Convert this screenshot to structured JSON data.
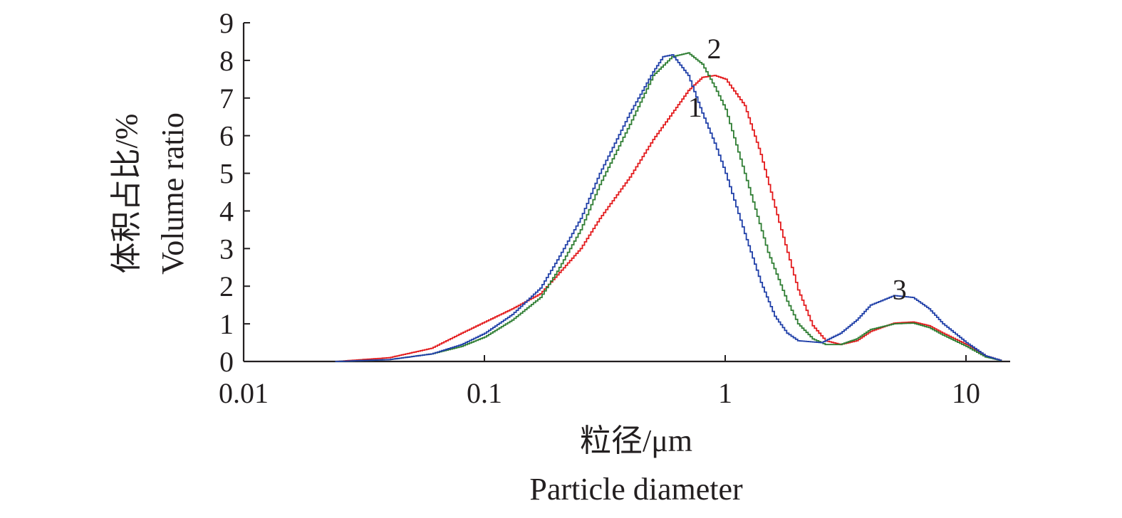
{
  "chart_data": {
    "type": "line",
    "xscale": "log",
    "xlim": [
      0.01,
      15
    ],
    "ylim": [
      0,
      9
    ],
    "x_ticks": [
      0.01,
      0.1,
      1,
      10
    ],
    "x_tick_labels": [
      "0.01",
      "0.1",
      "1",
      "10"
    ],
    "y_ticks": [
      0,
      1,
      2,
      3,
      4,
      5,
      6,
      7,
      8,
      9
    ],
    "y_tick_labels": [
      "0",
      "1",
      "2",
      "3",
      "4",
      "5",
      "6",
      "7",
      "8",
      "9"
    ],
    "xlabel_cn": "粒径/μm",
    "xlabel_en": "Particle diameter",
    "ylabel_cn": "体积占比/%",
    "ylabel_en": "Volume ratio",
    "grid": false,
    "series": [
      {
        "label": "1",
        "color": "#e31a1c",
        "points": [
          [
            0.024,
            0.0
          ],
          [
            0.04,
            0.1
          ],
          [
            0.06,
            0.35
          ],
          [
            0.08,
            0.75
          ],
          [
            0.1,
            1.05
          ],
          [
            0.13,
            1.4
          ],
          [
            0.17,
            1.8
          ],
          [
            0.2,
            2.3
          ],
          [
            0.25,
            3.0
          ],
          [
            0.3,
            3.8
          ],
          [
            0.4,
            4.9
          ],
          [
            0.5,
            5.9
          ],
          [
            0.6,
            6.6
          ],
          [
            0.7,
            7.2
          ],
          [
            0.8,
            7.55
          ],
          [
            0.9,
            7.6
          ],
          [
            1.0,
            7.5
          ],
          [
            1.2,
            6.8
          ],
          [
            1.4,
            5.5
          ],
          [
            1.7,
            3.5
          ],
          [
            2.0,
            1.9
          ],
          [
            2.3,
            0.95
          ],
          [
            2.6,
            0.55
          ],
          [
            3.0,
            0.45
          ],
          [
            3.5,
            0.55
          ],
          [
            4.0,
            0.8
          ],
          [
            5.0,
            1.02
          ],
          [
            6.0,
            1.05
          ],
          [
            7.0,
            0.95
          ],
          [
            8.0,
            0.75
          ],
          [
            10.0,
            0.45
          ],
          [
            12.0,
            0.15
          ],
          [
            14.0,
            0.02
          ]
        ],
        "label_anchor": [
          0.75,
          6.5
        ]
      },
      {
        "label": "2",
        "color": "#2e7d32",
        "points": [
          [
            0.024,
            0.0
          ],
          [
            0.04,
            0.05
          ],
          [
            0.06,
            0.2
          ],
          [
            0.08,
            0.4
          ],
          [
            0.1,
            0.65
          ],
          [
            0.13,
            1.1
          ],
          [
            0.17,
            1.7
          ],
          [
            0.2,
            2.4
          ],
          [
            0.25,
            3.5
          ],
          [
            0.3,
            4.7
          ],
          [
            0.4,
            6.3
          ],
          [
            0.5,
            7.6
          ],
          [
            0.6,
            8.1
          ],
          [
            0.7,
            8.2
          ],
          [
            0.8,
            7.9
          ],
          [
            0.9,
            7.3
          ],
          [
            1.0,
            6.7
          ],
          [
            1.2,
            5.0
          ],
          [
            1.5,
            2.9
          ],
          [
            1.8,
            1.6
          ],
          [
            2.0,
            1.0
          ],
          [
            2.3,
            0.6
          ],
          [
            2.6,
            0.45
          ],
          [
            3.0,
            0.45
          ],
          [
            3.5,
            0.6
          ],
          [
            4.0,
            0.85
          ],
          [
            5.0,
            1.0
          ],
          [
            6.0,
            1.02
          ],
          [
            7.0,
            0.9
          ],
          [
            8.0,
            0.7
          ],
          [
            10.0,
            0.4
          ],
          [
            12.0,
            0.12
          ],
          [
            14.0,
            0.02
          ]
        ],
        "label_anchor": [
          0.9,
          8.05
        ]
      },
      {
        "label": "3",
        "color": "#1f3fa8",
        "points": [
          [
            0.024,
            0.0
          ],
          [
            0.04,
            0.05
          ],
          [
            0.06,
            0.2
          ],
          [
            0.08,
            0.45
          ],
          [
            0.1,
            0.75
          ],
          [
            0.13,
            1.25
          ],
          [
            0.17,
            1.95
          ],
          [
            0.2,
            2.7
          ],
          [
            0.25,
            3.8
          ],
          [
            0.3,
            5.0
          ],
          [
            0.4,
            6.6
          ],
          [
            0.5,
            7.7
          ],
          [
            0.55,
            8.1
          ],
          [
            0.6,
            8.15
          ],
          [
            0.7,
            7.6
          ],
          [
            0.8,
            6.6
          ],
          [
            0.9,
            5.8
          ],
          [
            1.0,
            5.0
          ],
          [
            1.2,
            3.4
          ],
          [
            1.4,
            2.1
          ],
          [
            1.6,
            1.2
          ],
          [
            1.8,
            0.75
          ],
          [
            2.0,
            0.55
          ],
          [
            2.5,
            0.5
          ],
          [
            3.0,
            0.75
          ],
          [
            3.5,
            1.1
          ],
          [
            4.0,
            1.5
          ],
          [
            5.0,
            1.75
          ],
          [
            6.0,
            1.7
          ],
          [
            7.0,
            1.4
          ],
          [
            8.0,
            1.0
          ],
          [
            10.0,
            0.5
          ],
          [
            12.0,
            0.15
          ],
          [
            14.0,
            0.02
          ]
        ],
        "label_anchor": [
          5.3,
          1.65
        ]
      }
    ]
  }
}
